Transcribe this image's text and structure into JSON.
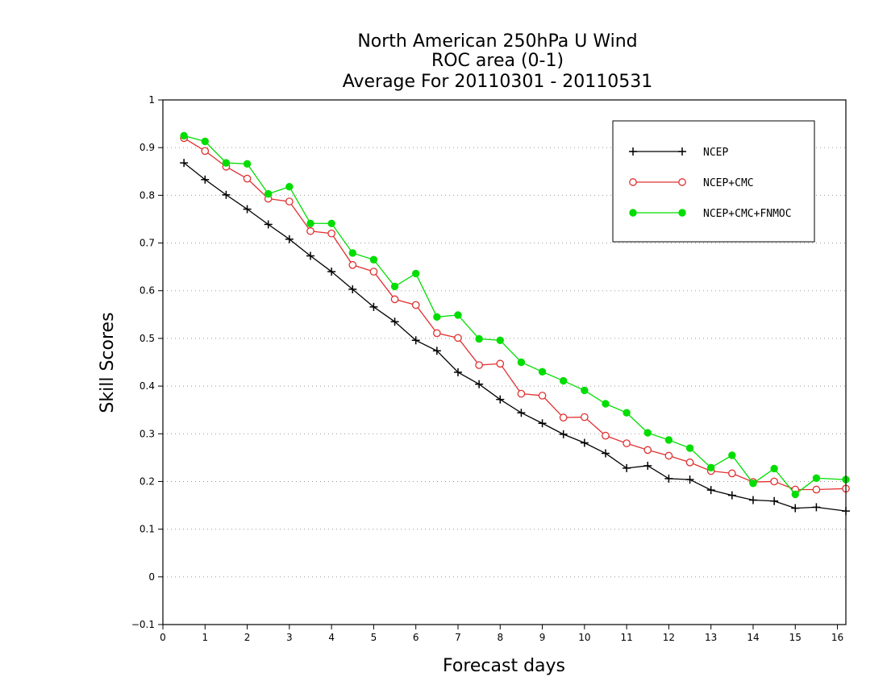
{
  "chart_data": {
    "type": "line",
    "title": [
      "North American 250hPa U Wind",
      "ROC area (0-1)",
      "Average For 20110301 - 20110531"
    ],
    "xlabel": "Forecast days",
    "ylabel": "Skill Scores",
    "xlim": [
      0,
      16.2
    ],
    "ylim": [
      -0.1,
      1
    ],
    "xticks": [
      "0",
      "1",
      "2",
      "3",
      "4",
      "5",
      "6",
      "7",
      "8",
      "9",
      "10",
      "11",
      "12",
      "13",
      "14",
      "15",
      "16"
    ],
    "yticks": [
      "−0.1",
      "0",
      "0.1",
      "0.2",
      "0.3",
      "0.4",
      "0.5",
      "0.6",
      "0.7",
      "0.8",
      "0.9",
      "1"
    ],
    "grid": "horizontal dotted",
    "legend_position": "top-right",
    "x": [
      0.5,
      1,
      1.5,
      2,
      2.5,
      3,
      3.5,
      4,
      4.5,
      5,
      5.5,
      6,
      6.5,
      7,
      7.5,
      8,
      8.5,
      9,
      9.5,
      10,
      10.5,
      11,
      11.5,
      12,
      12.5,
      13,
      13.5,
      14,
      14.5,
      15,
      15.5,
      16.2
    ],
    "series": [
      {
        "name": "NCEP",
        "color": "#000000",
        "marker": "plus",
        "values": [
          0.868,
          0.833,
          0.801,
          0.771,
          0.739,
          0.708,
          0.673,
          0.64,
          0.603,
          0.566,
          0.535,
          0.496,
          0.474,
          0.429,
          0.404,
          0.372,
          0.344,
          0.322,
          0.299,
          0.281,
          0.259,
          0.228,
          0.233,
          0.206,
          0.204,
          0.182,
          0.171,
          0.161,
          0.159,
          0.144,
          0.146,
          0.138
        ]
      },
      {
        "name": "NCEP+CMC",
        "color": "#e03030",
        "marker": "open-circle",
        "values": [
          0.92,
          0.893,
          0.86,
          0.835,
          0.793,
          0.787,
          0.725,
          0.72,
          0.654,
          0.64,
          0.582,
          0.57,
          0.511,
          0.501,
          0.444,
          0.447,
          0.384,
          0.38,
          0.334,
          0.335,
          0.296,
          0.28,
          0.266,
          0.254,
          0.24,
          0.222,
          0.217,
          0.199,
          0.2,
          0.183,
          0.183,
          0.185
        ]
      },
      {
        "name": "NCEP+CMC+FNMOC",
        "color": "#00dd00",
        "marker": "filled-circle",
        "values": [
          0.925,
          0.913,
          0.868,
          0.866,
          0.803,
          0.818,
          0.741,
          0.741,
          0.679,
          0.665,
          0.609,
          0.636,
          0.545,
          0.549,
          0.499,
          0.496,
          0.45,
          0.43,
          0.411,
          0.391,
          0.363,
          0.344,
          0.302,
          0.287,
          0.27,
          0.229,
          0.255,
          0.196,
          0.227,
          0.173,
          0.207,
          0.204
        ]
      }
    ]
  }
}
